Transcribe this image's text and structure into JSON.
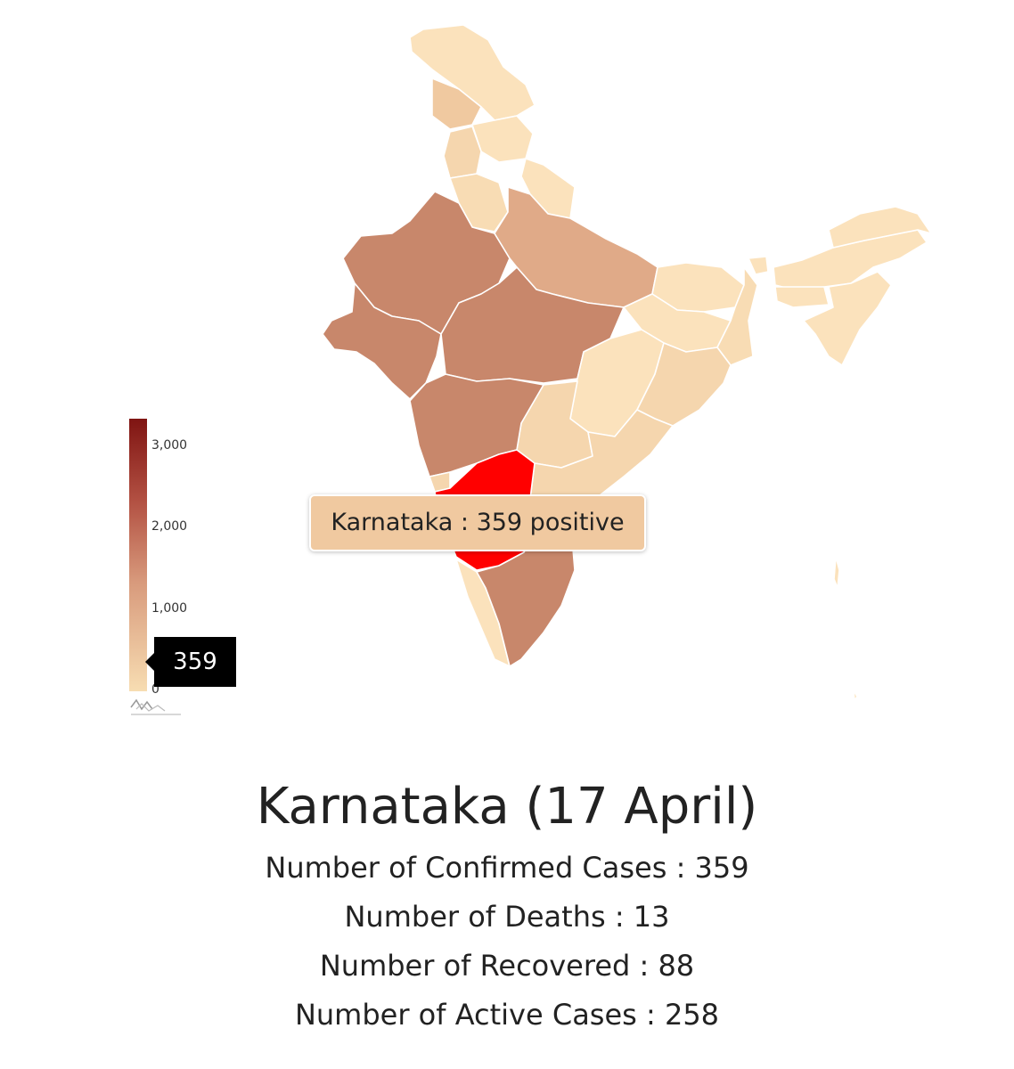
{
  "map": {
    "legend": {
      "ticks": [
        "3,000",
        "2,000",
        "1,000",
        "0"
      ],
      "marker_value": "359",
      "max": 3300,
      "colors": {
        "high": "#7f1412",
        "mid": "#b25042",
        "low": "#f7ddb2"
      }
    },
    "selected_state": "Karnataka",
    "highlight_color": "#ff0000",
    "tooltip": "Karnataka : 359 positive"
  },
  "info": {
    "title": "Karnataka (17 April)",
    "lines": [
      "Number of Confirmed Cases : 359",
      "Number of Deaths : 13",
      "Number of Recovered : 88",
      "Number of Active Cases : 258"
    ]
  }
}
